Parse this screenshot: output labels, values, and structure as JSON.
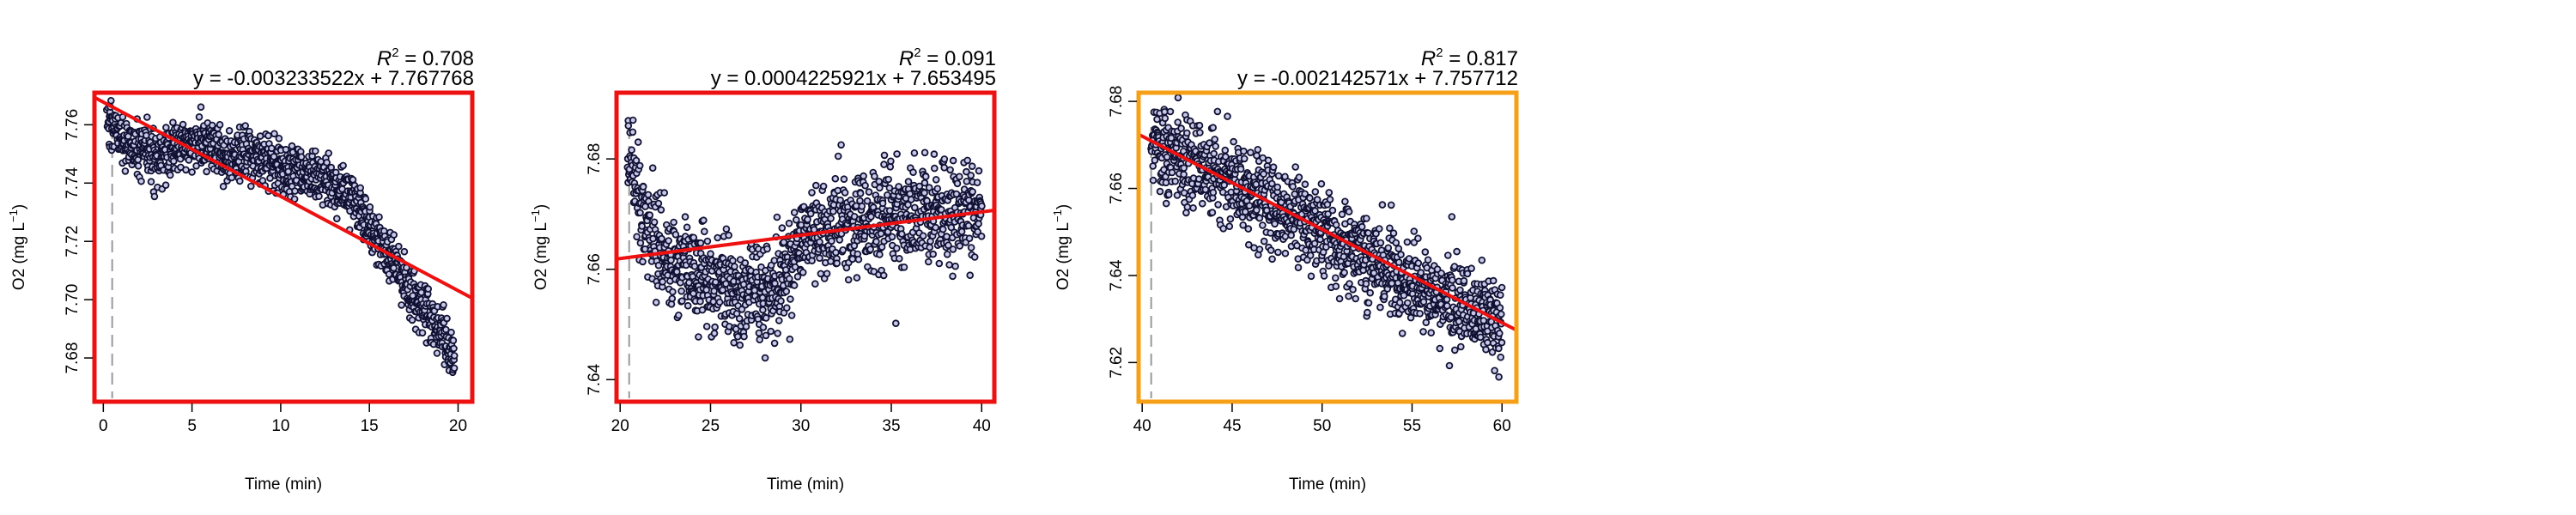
{
  "chart_data": [
    {
      "type": "scatter",
      "r2_value": "0.708",
      "equation": "y = -0.003233522x + 7.767768",
      "xlabel": "Time (min)",
      "ylabel": "O2 (mg L",
      "ylabel_sup": "−1",
      "ylabel_close": ")",
      "xlim": [
        -0.5,
        20.8
      ],
      "ylim": [
        7.665,
        7.771
      ],
      "xticks": [
        "0",
        "5",
        "10",
        "15",
        "20"
      ],
      "yticks": [
        "7.68",
        "7.70",
        "7.72",
        "7.74",
        "7.76"
      ],
      "frame_color": "#ee1111",
      "fit_color": "#ee1111",
      "marker_color": "#111133",
      "marker_fill": "#c8c8e8",
      "start_marker_x": 0.5,
      "trend_points": [
        [
          0.2,
          7.762
        ],
        [
          1,
          7.755
        ],
        [
          2,
          7.752
        ],
        [
          3,
          7.748
        ],
        [
          4,
          7.752
        ],
        [
          5,
          7.754
        ],
        [
          6,
          7.753
        ],
        [
          7,
          7.748
        ],
        [
          8,
          7.75
        ],
        [
          9,
          7.748
        ],
        [
          10,
          7.746
        ],
        [
          11,
          7.744
        ],
        [
          12,
          7.742
        ],
        [
          13,
          7.74
        ],
        [
          14,
          7.735
        ],
        [
          15,
          7.727
        ],
        [
          16,
          7.716
        ],
        [
          17,
          7.706
        ],
        [
          18,
          7.697
        ],
        [
          19,
          7.689
        ],
        [
          19.8,
          7.68
        ]
      ],
      "trend_noise": 0.0045,
      "point_count": 1200,
      "fit": {
        "slope": -0.003233522,
        "intercept": 7.767768
      },
      "r2": 0.708
    },
    {
      "type": "scatter",
      "r2_value": "0.091",
      "equation": "y = 0.0004225921x + 7.653495",
      "xlabel": "Time (min)",
      "ylabel": "O2 (mg L",
      "ylabel_sup": "−1",
      "ylabel_close": ")",
      "xlim": [
        19.8,
        40.7
      ],
      "ylim": [
        7.636,
        7.692
      ],
      "xticks": [
        "20",
        "25",
        "30",
        "35",
        "40"
      ],
      "yticks": [
        "7.64",
        "7.66",
        "7.68"
      ],
      "frame_color": "#ee1111",
      "fit_color": "#ee1111",
      "marker_color": "#111133",
      "marker_fill": "#c8c8e8",
      "start_marker_x": 20.5,
      "trend_points": [
        [
          20.4,
          7.684
        ],
        [
          21,
          7.673
        ],
        [
          22,
          7.664
        ],
        [
          23,
          7.662
        ],
        [
          24,
          7.66
        ],
        [
          25,
          7.658
        ],
        [
          26,
          7.657
        ],
        [
          27,
          7.656
        ],
        [
          28,
          7.655
        ],
        [
          29,
          7.658
        ],
        [
          30,
          7.664
        ],
        [
          31,
          7.667
        ],
        [
          32,
          7.668
        ],
        [
          33,
          7.668
        ],
        [
          34,
          7.669
        ],
        [
          35,
          7.67
        ],
        [
          36,
          7.67
        ],
        [
          37,
          7.67
        ],
        [
          38,
          7.67
        ],
        [
          39,
          7.67
        ],
        [
          40,
          7.67
        ]
      ],
      "trend_noise": 0.0045,
      "point_count": 1200,
      "fit": {
        "slope": 0.0004225921,
        "intercept": 7.653495
      },
      "r2": 0.091
    },
    {
      "type": "scatter",
      "r2_value": "0.817",
      "equation": "y = -0.002142571x + 7.757712",
      "xlabel": "Time (min)",
      "ylabel": "O2 (mg L",
      "ylabel_sup": "−1",
      "ylabel_close": ")",
      "xlim": [
        39.8,
        60.8
      ],
      "ylim": [
        7.611,
        7.682
      ],
      "xticks": [
        "40",
        "45",
        "50",
        "55",
        "60"
      ],
      "yticks": [
        "7.62",
        "7.64",
        "7.66",
        "7.68"
      ],
      "frame_color": "#f5a017",
      "fit_color": "#ee1111",
      "marker_color": "#111133",
      "marker_fill": "#c8c8e8",
      "start_marker_x": 40.5,
      "trend_points": [
        [
          40.5,
          7.668
        ],
        [
          42,
          7.668
        ],
        [
          44,
          7.664
        ],
        [
          46,
          7.659
        ],
        [
          48,
          7.655
        ],
        [
          50,
          7.65
        ],
        [
          52,
          7.645
        ],
        [
          54,
          7.64
        ],
        [
          56,
          7.636
        ],
        [
          58,
          7.633
        ],
        [
          60,
          7.63
        ]
      ],
      "trend_noise": 0.0052,
      "point_count": 1200,
      "fit": {
        "slope": -0.002142571,
        "intercept": 7.757712
      },
      "r2": 0.817
    }
  ]
}
